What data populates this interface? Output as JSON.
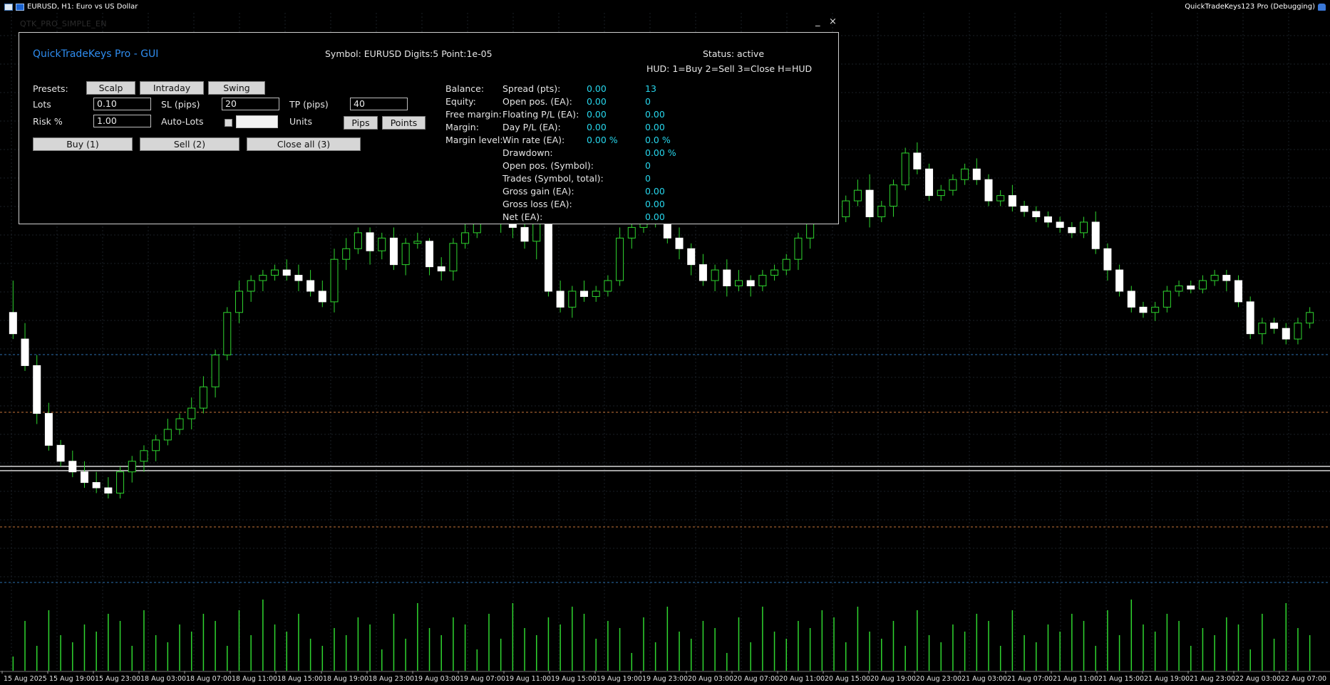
{
  "window": {
    "title": "EURUSD, H1:  Euro vs US Dollar",
    "ea_name": "QuickTradeKeys123 Pro (Debugging)",
    "object_name": "QTK_PRO_SIMPLE_EN",
    "minimize_label": "_",
    "close_label": "×"
  },
  "panel": {
    "title": "QuickTradeKeys Pro - GUI",
    "symbol_info": "Symbol: EURUSD  Digits:5  Point:1e-05",
    "status": "Status: active",
    "hud_help": "HUD: 1=Buy  2=Sell  3=Close  H=HUD",
    "presets_label": "Presets:",
    "preset_buttons": [
      "Scalp",
      "Intraday",
      "Swing"
    ],
    "lots_label": "Lots",
    "lots_value": "0.10",
    "sl_label": "SL (pips)",
    "sl_value": "20",
    "tp_label": "TP (pips)",
    "tp_value": "40",
    "risk_label": "Risk %",
    "risk_value": "1.00",
    "autolots_label": "Auto-Lots",
    "autolots_checked": false,
    "units_label": "Units",
    "units_buttons": [
      "Pips",
      "Points"
    ],
    "buy_button": "Buy (1)",
    "sell_button": "Sell (2)",
    "close_button": "Close all (3)",
    "account_labels": [
      "Balance:",
      "Equity:",
      "Free margin:",
      "Margin:",
      "Margin level:"
    ],
    "stats": [
      {
        "label": "Spread (pts):",
        "a": "0.00",
        "b": "13"
      },
      {
        "label": "Open pos. (EA):",
        "a": "0.00",
        "b": "0"
      },
      {
        "label": "Floating P/L (EA):",
        "a": "0.00",
        "b": "0.00"
      },
      {
        "label": "Day P/L (EA):",
        "a": "0.00",
        "b": "0.00"
      },
      {
        "label": "Win rate (EA):",
        "a": "0.00 %",
        "b": "0.0 %"
      },
      {
        "label": "Drawdown:",
        "a": "",
        "b": "0.00 %"
      },
      {
        "label": "Open pos. (Symbol):",
        "a": "",
        "b": "0"
      },
      {
        "label": "Trades (Symbol, total):",
        "a": "",
        "b": "0"
      },
      {
        "label": "Gross gain (EA):",
        "a": "",
        "b": "0.00"
      },
      {
        "label": "Gross loss (EA):",
        "a": "",
        "b": "0.00"
      },
      {
        "label": "Net (EA):",
        "a": "",
        "b": "0.00"
      }
    ]
  },
  "chart_data": {
    "type": "candlestick",
    "symbol": "EURUSD",
    "timeframe": "H1",
    "x_tick_labels": [
      "15 Aug 2025",
      "15 Aug 19:00",
      "15 Aug 23:00",
      "18 Aug 03:00",
      "18 Aug 07:00",
      "18 Aug 11:00",
      "18 Aug 15:00",
      "18 Aug 19:00",
      "18 Aug 23:00",
      "19 Aug 03:00",
      "19 Aug 07:00",
      "19 Aug 11:00",
      "19 Aug 15:00",
      "19 Aug 19:00",
      "19 Aug 23:00",
      "20 Aug 03:00",
      "20 Aug 07:00",
      "20 Aug 11:00",
      "20 Aug 15:00",
      "20 Aug 19:00",
      "20 Aug 23:00",
      "21 Aug 03:00",
      "21 Aug 07:00",
      "21 Aug 11:00",
      "21 Aug 15:00",
      "21 Aug 19:00",
      "21 Aug 23:00",
      "22 Aug 03:00",
      "22 Aug 07:00"
    ],
    "y_axis": "price (relative, no scale printed)",
    "ohlc": [
      [
        270,
        250,
        300,
        245
      ],
      [
        245,
        220,
        260,
        215
      ],
      [
        220,
        175,
        230,
        165
      ],
      [
        175,
        145,
        185,
        140
      ],
      [
        145,
        130,
        150,
        125
      ],
      [
        130,
        120,
        140,
        115
      ],
      [
        120,
        110,
        130,
        105
      ],
      [
        110,
        105,
        120,
        100
      ],
      [
        105,
        100,
        115,
        95
      ],
      [
        100,
        120,
        125,
        95
      ],
      [
        120,
        130,
        135,
        110
      ],
      [
        130,
        140,
        145,
        120
      ],
      [
        140,
        150,
        155,
        130
      ],
      [
        150,
        160,
        170,
        145
      ],
      [
        160,
        170,
        175,
        155
      ],
      [
        170,
        180,
        190,
        160
      ],
      [
        180,
        200,
        210,
        175
      ],
      [
        200,
        230,
        235,
        190
      ],
      [
        230,
        270,
        275,
        225
      ],
      [
        270,
        290,
        300,
        260
      ],
      [
        290,
        300,
        305,
        280
      ],
      [
        300,
        305,
        310,
        290
      ],
      [
        305,
        310,
        315,
        300
      ],
      [
        310,
        305,
        320,
        300
      ],
      [
        305,
        300,
        315,
        290
      ],
      [
        300,
        290,
        310,
        285
      ],
      [
        290,
        280,
        300,
        275
      ],
      [
        280,
        320,
        330,
        270
      ],
      [
        320,
        330,
        340,
        310
      ],
      [
        330,
        345,
        350,
        325
      ],
      [
        345,
        328,
        350,
        315
      ],
      [
        328,
        340,
        345,
        320
      ],
      [
        340,
        315,
        350,
        310
      ],
      [
        315,
        335,
        340,
        305
      ],
      [
        335,
        337,
        345,
        330
      ],
      [
        337,
        313,
        340,
        305
      ],
      [
        313,
        309,
        322,
        300
      ],
      [
        309,
        335,
        340,
        300
      ],
      [
        335,
        345,
        355,
        330
      ],
      [
        345,
        375,
        380,
        340
      ],
      [
        375,
        370,
        385,
        360
      ],
      [
        370,
        355,
        380,
        345
      ],
      [
        355,
        350,
        365,
        340
      ],
      [
        350,
        337,
        360,
        330
      ],
      [
        337,
        355,
        360,
        320
      ],
      [
        355,
        290,
        365,
        285
      ],
      [
        290,
        275,
        300,
        270
      ],
      [
        275,
        290,
        295,
        265
      ],
      [
        290,
        285,
        300,
        280
      ],
      [
        285,
        290,
        295,
        280
      ],
      [
        290,
        300,
        305,
        285
      ],
      [
        300,
        340,
        350,
        295
      ],
      [
        340,
        350,
        355,
        330
      ],
      [
        350,
        355,
        360,
        345
      ],
      [
        355,
        360,
        365,
        350
      ],
      [
        360,
        340,
        370,
        335
      ],
      [
        340,
        330,
        350,
        320
      ],
      [
        330,
        315,
        335,
        305
      ],
      [
        315,
        300,
        325,
        295
      ],
      [
        300,
        310,
        315,
        290
      ],
      [
        310,
        295,
        320,
        285
      ],
      [
        295,
        300,
        310,
        290
      ],
      [
        300,
        295,
        305,
        285
      ],
      [
        295,
        305,
        310,
        290
      ],
      [
        305,
        310,
        315,
        300
      ],
      [
        310,
        320,
        325,
        305
      ],
      [
        320,
        340,
        345,
        310
      ],
      [
        340,
        380,
        385,
        330
      ],
      [
        380,
        390,
        395,
        375
      ],
      [
        390,
        360,
        395,
        355
      ],
      [
        360,
        375,
        380,
        355
      ],
      [
        375,
        385,
        395,
        370
      ],
      [
        385,
        360,
        400,
        350
      ],
      [
        360,
        370,
        375,
        355
      ],
      [
        370,
        390,
        395,
        360
      ],
      [
        390,
        420,
        425,
        385
      ],
      [
        420,
        405,
        430,
        400
      ],
      [
        405,
        380,
        410,
        375
      ],
      [
        380,
        385,
        390,
        375
      ],
      [
        385,
        395,
        400,
        380
      ],
      [
        395,
        405,
        410,
        390
      ],
      [
        405,
        395,
        415,
        390
      ],
      [
        395,
        375,
        400,
        370
      ],
      [
        375,
        380,
        385,
        370
      ],
      [
        380,
        370,
        390,
        365
      ],
      [
        370,
        365,
        375,
        360
      ],
      [
        365,
        360,
        370,
        355
      ],
      [
        360,
        355,
        365,
        350
      ],
      [
        355,
        350,
        360,
        345
      ],
      [
        350,
        345,
        355,
        340
      ],
      [
        345,
        355,
        360,
        340
      ],
      [
        355,
        330,
        365,
        325
      ],
      [
        330,
        310,
        335,
        300
      ],
      [
        310,
        290,
        315,
        285
      ],
      [
        290,
        275,
        295,
        270
      ],
      [
        275,
        270,
        280,
        265
      ],
      [
        270,
        275,
        280,
        262
      ],
      [
        275,
        290,
        295,
        270
      ],
      [
        290,
        295,
        300,
        285
      ],
      [
        295,
        292,
        300,
        288
      ],
      [
        292,
        300,
        305,
        288
      ],
      [
        300,
        305,
        310,
        295
      ],
      [
        305,
        300,
        310,
        290
      ],
      [
        300,
        280,
        305,
        275
      ],
      [
        280,
        250,
        285,
        245
      ],
      [
        250,
        260,
        265,
        240
      ],
      [
        260,
        255,
        265,
        250
      ],
      [
        255,
        245,
        260,
        240
      ],
      [
        245,
        260,
        265,
        240
      ],
      [
        260,
        270,
        275,
        255
      ]
    ]
  }
}
